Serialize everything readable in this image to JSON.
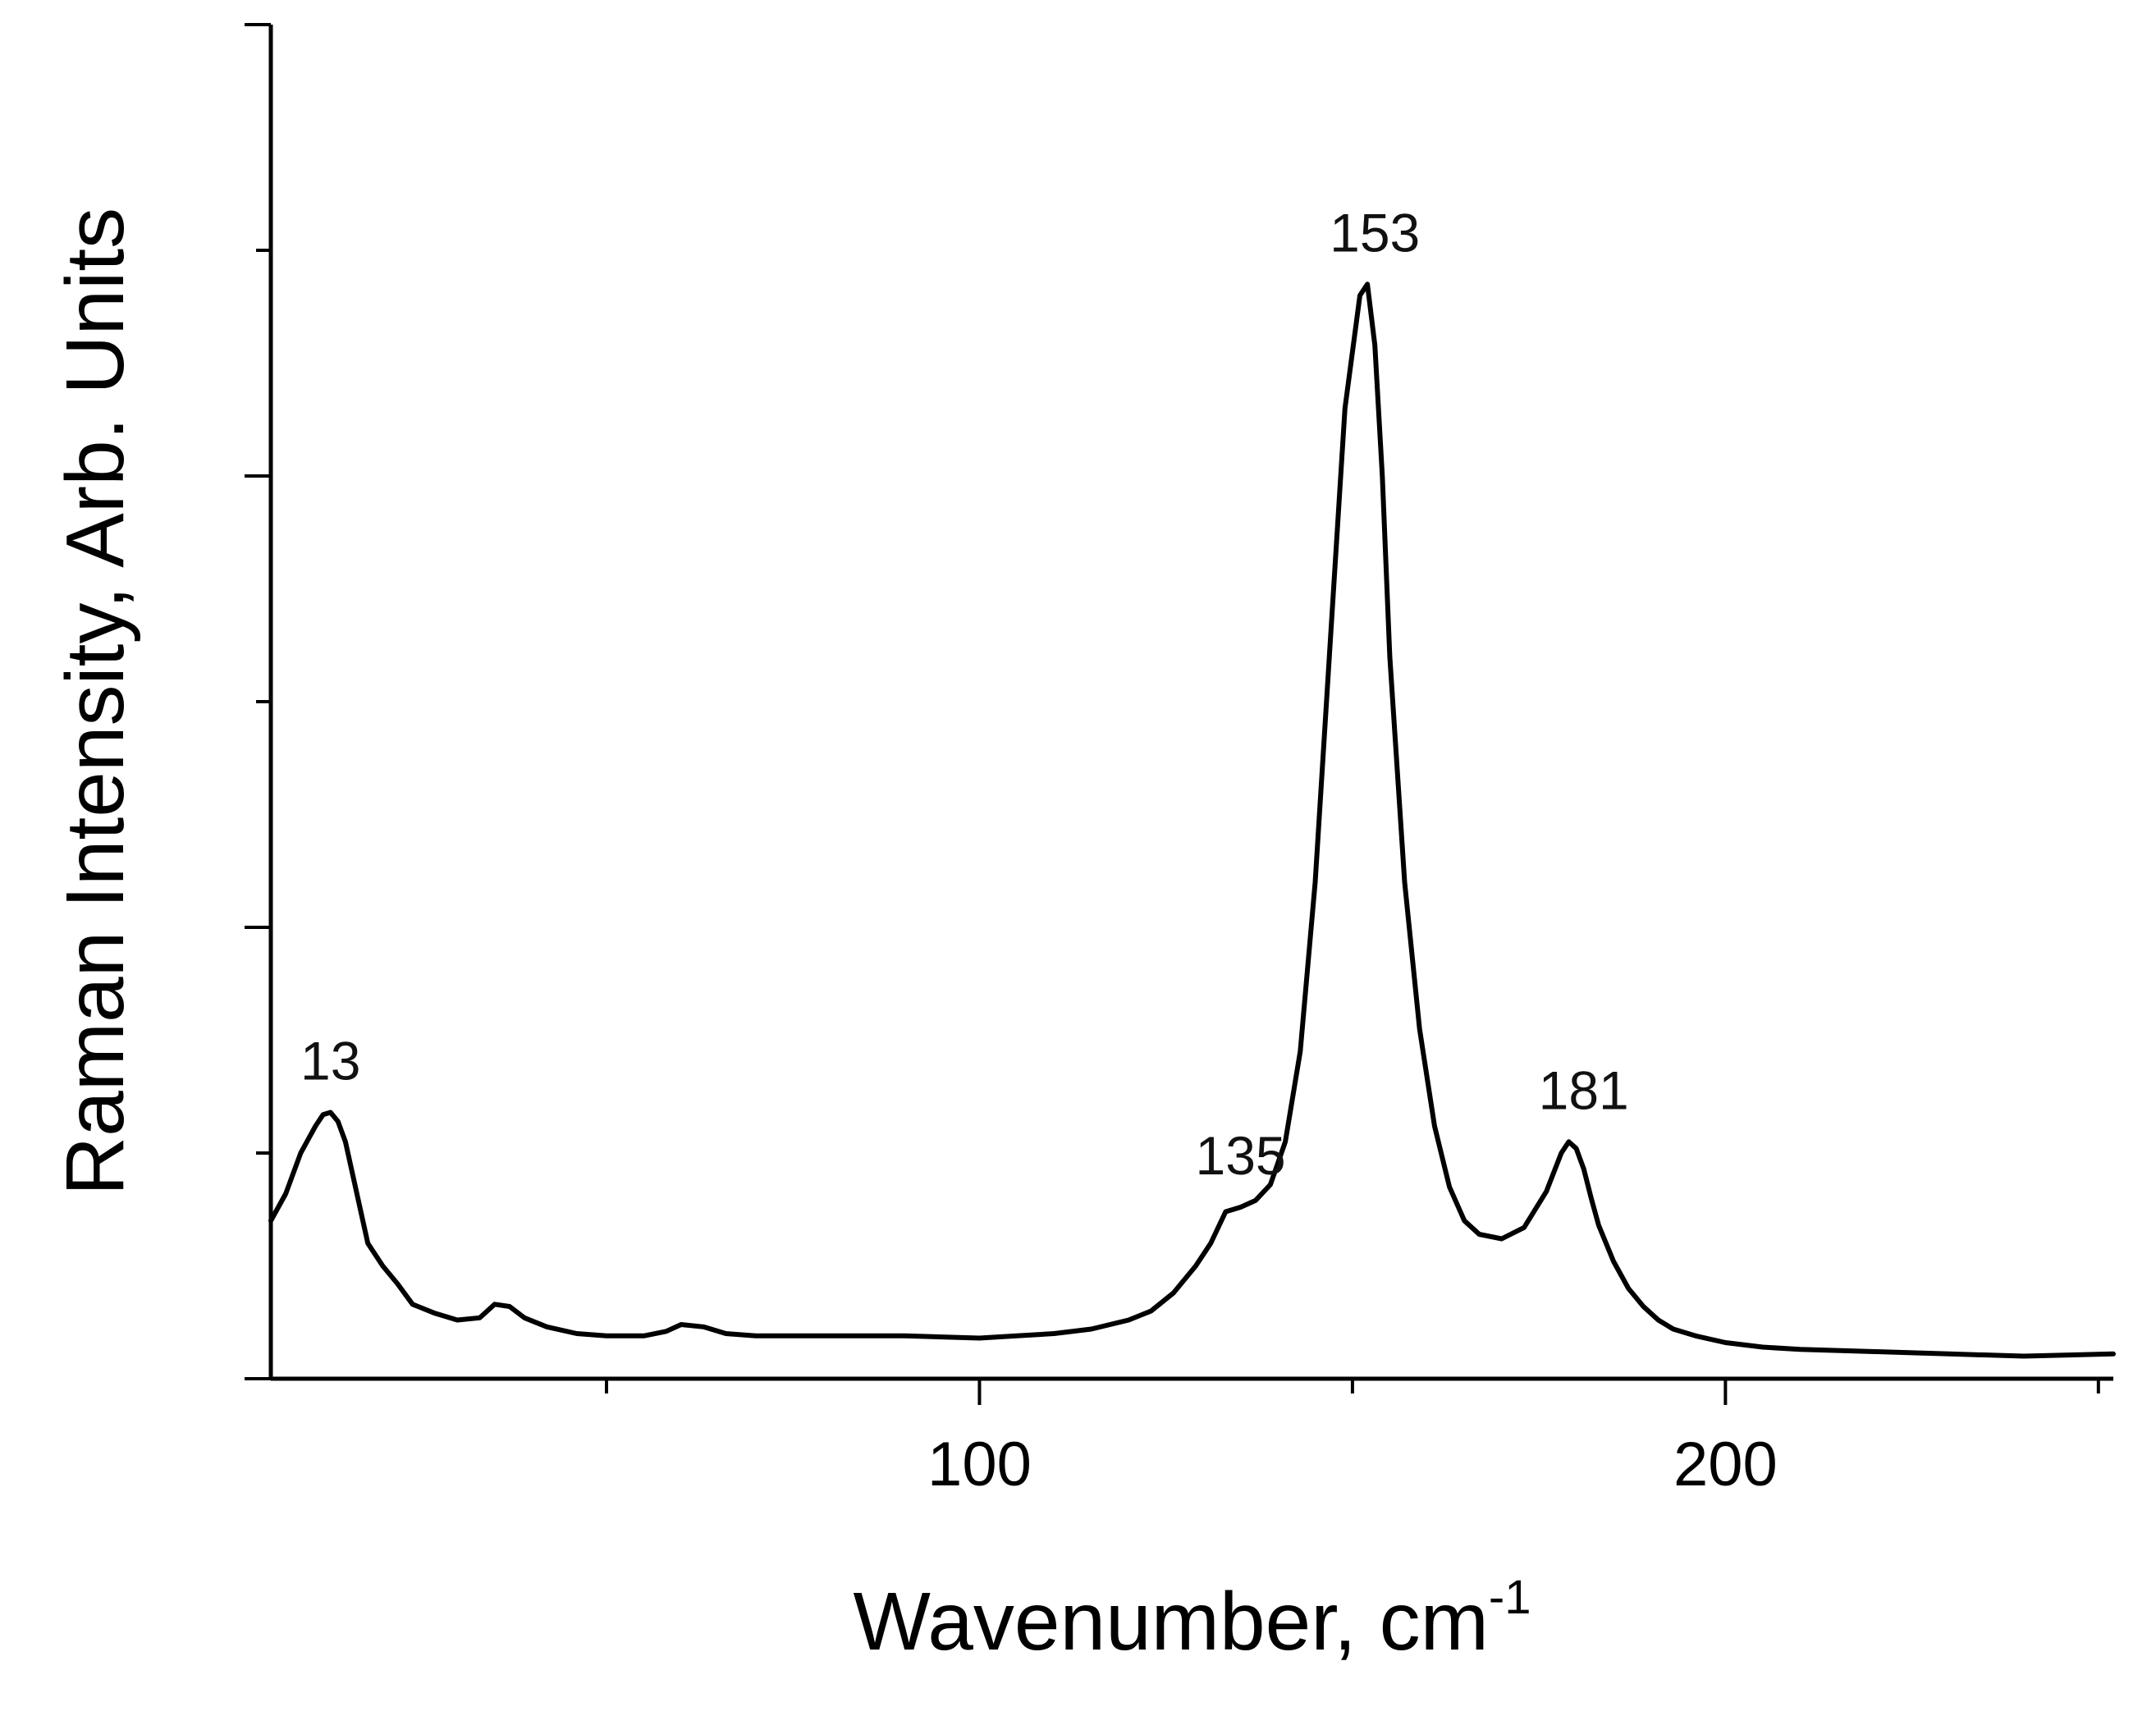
{
  "chart_data": {
    "type": "line",
    "title": "",
    "xlabel": "Wavenumber, cm",
    "xlabel_superscript": "-1",
    "ylabel": "Raman Intensity, Arb. Units",
    "xlim": [
      5,
      252
    ],
    "ylim": [
      0,
      6
    ],
    "x_ticks": [
      100,
      200
    ],
    "x_tick_labels": [
      "100",
      "200"
    ],
    "y_tick_labels_shown": false,
    "grid": false,
    "legend": "none",
    "series": [
      {
        "color": "#000000",
        "x": [
          5,
          7,
          9,
          11,
          12,
          13,
          14,
          15,
          16,
          17,
          18,
          20,
          22,
          24,
          27,
          30,
          33,
          35,
          37,
          39,
          42,
          46,
          50,
          55,
          58,
          60,
          63,
          66,
          70,
          80,
          90,
          100,
          105,
          110,
          115,
          120,
          123,
          126,
          129,
          131,
          133,
          135,
          137,
          139,
          141,
          143,
          145,
          147,
          149,
          151,
          152,
          153,
          154,
          155,
          157,
          159,
          161,
          163,
          165,
          167,
          170,
          173,
          176,
          178,
          179,
          180,
          181,
          182,
          183,
          185,
          187,
          189,
          191,
          193,
          196,
          200,
          205,
          210,
          220,
          230,
          240,
          252
        ],
        "y": [
          0.7,
          0.82,
          1.0,
          1.12,
          1.17,
          1.18,
          1.14,
          1.05,
          0.9,
          0.75,
          0.6,
          0.5,
          0.42,
          0.33,
          0.29,
          0.26,
          0.27,
          0.33,
          0.32,
          0.27,
          0.23,
          0.2,
          0.19,
          0.19,
          0.21,
          0.24,
          0.23,
          0.2,
          0.19,
          0.19,
          0.19,
          0.18,
          0.19,
          0.2,
          0.22,
          0.26,
          0.3,
          0.38,
          0.5,
          0.6,
          0.74,
          0.76,
          0.79,
          0.86,
          1.05,
          1.45,
          2.2,
          3.25,
          4.3,
          4.8,
          4.85,
          4.58,
          4.0,
          3.2,
          2.2,
          1.55,
          1.12,
          0.85,
          0.7,
          0.64,
          0.62,
          0.67,
          0.83,
          1.0,
          1.05,
          1.02,
          0.93,
          0.8,
          0.68,
          0.52,
          0.4,
          0.32,
          0.26,
          0.22,
          0.19,
          0.16,
          0.14,
          0.13,
          0.12,
          0.11,
          0.1,
          0.11
        ]
      }
    ],
    "annotations": [
      {
        "text": "13",
        "x": 13,
        "y": 1.18
      },
      {
        "text": "135",
        "x": 135,
        "y": 0.76
      },
      {
        "text": "153",
        "x": 153,
        "y": 4.85
      },
      {
        "text": "181",
        "x": 181,
        "y": 1.05
      }
    ]
  }
}
